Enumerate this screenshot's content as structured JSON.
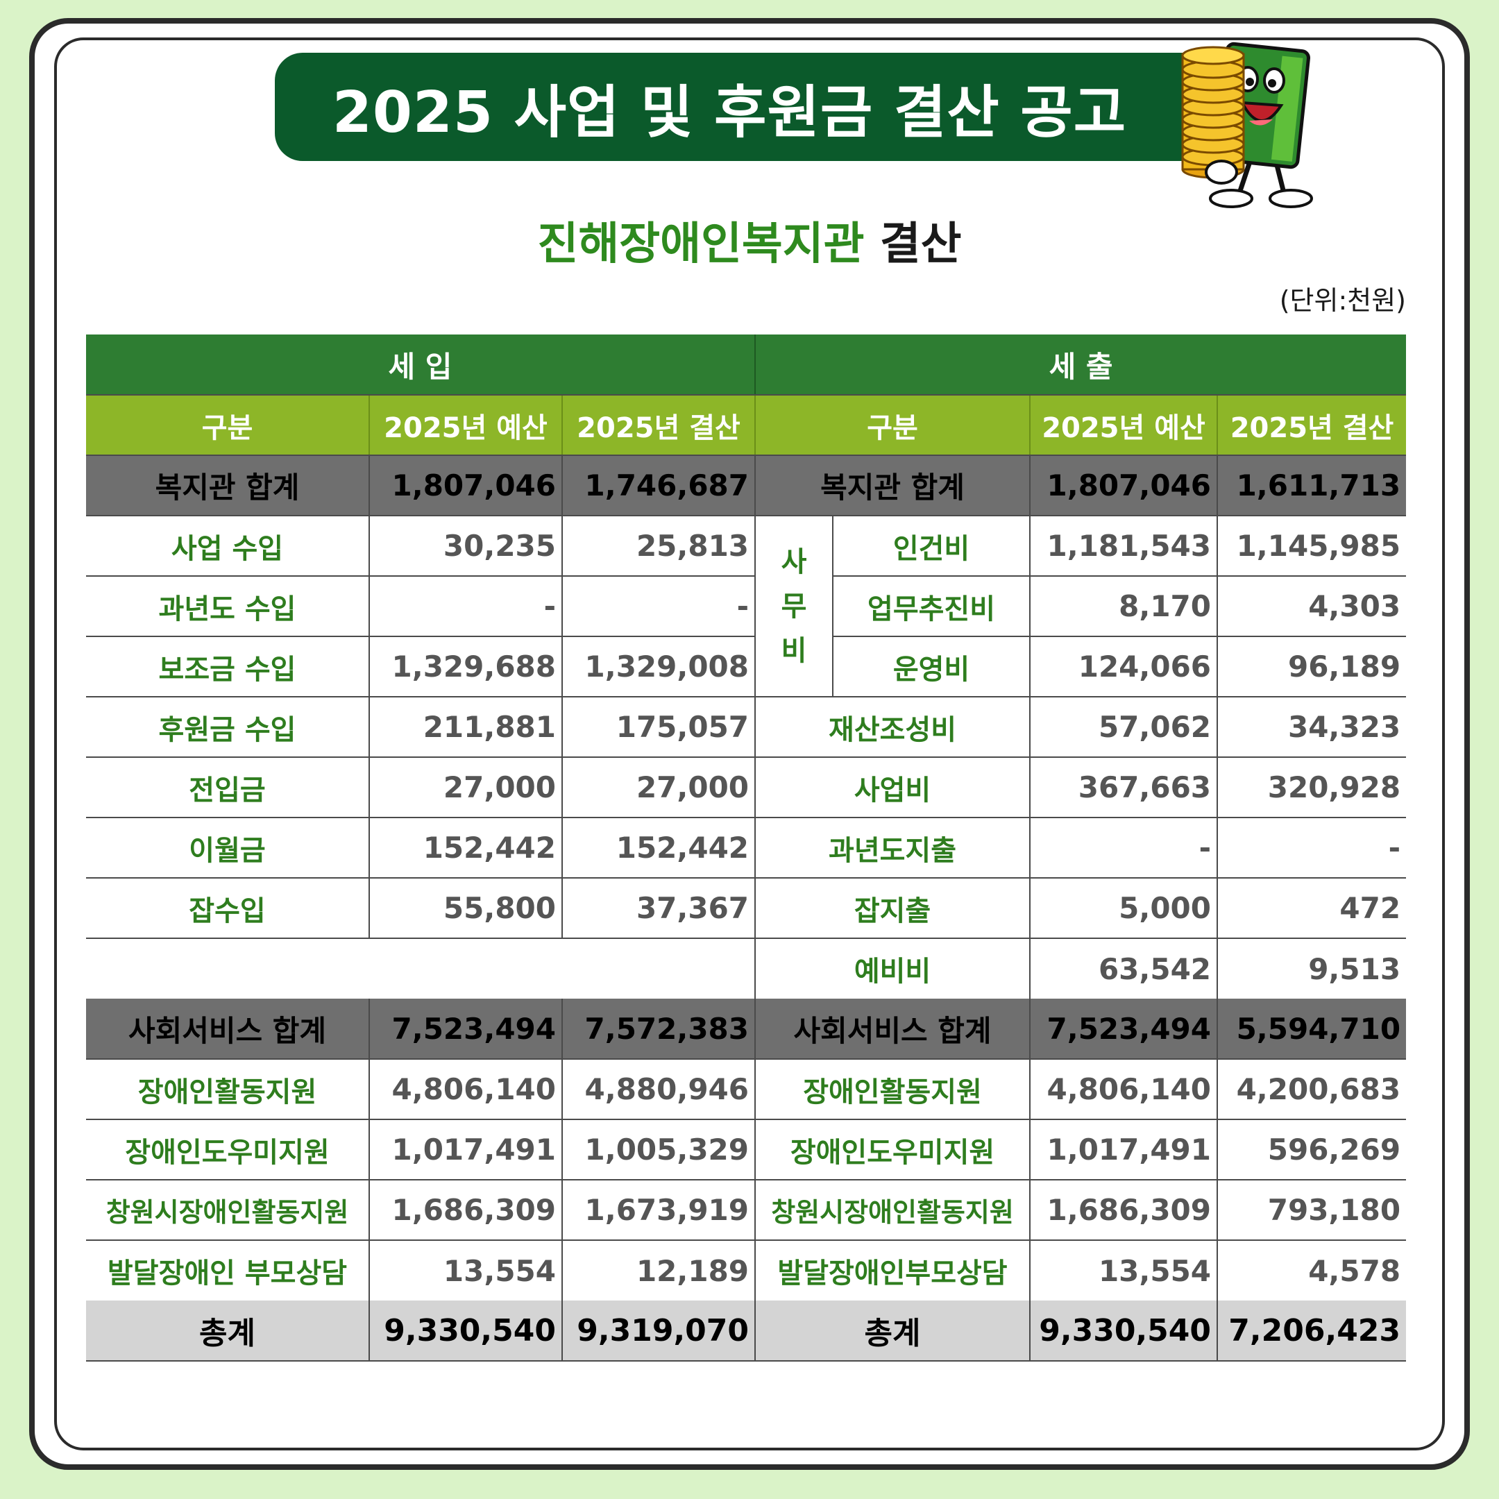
{
  "banner": {
    "title": "2025 사업 및 후원금 결산 공고"
  },
  "subtitle": {
    "org": "진해장애인복지관",
    "keyword": "결산"
  },
  "unit": "(단위:천원)",
  "table": {
    "income_header": "세 입",
    "expense_header": "세 출",
    "col_category": "구분",
    "col_budget": "2025년 예산",
    "col_settlement": "2025년 결산",
    "office_group": [
      "사",
      "무",
      "비"
    ],
    "welfare_sum": {
      "income": {
        "label": "복지관 합계",
        "budget": "1,807,046",
        "settlement": "1,746,687"
      },
      "expense": {
        "label": "복지관 합계",
        "budget": "1,807,046",
        "settlement": "1,611,713"
      }
    },
    "welfare_rows": [
      {
        "in_label": "사업 수입",
        "in_budget": "30,235",
        "in_settlement": "25,813",
        "ex_label": "인건비",
        "ex_budget": "1,181,543",
        "ex_settlement": "1,145,985"
      },
      {
        "in_label": "과년도 수입",
        "in_budget": "-",
        "in_settlement": "-",
        "ex_label": "업무추진비",
        "ex_budget": "8,170",
        "ex_settlement": "4,303"
      },
      {
        "in_label": "보조금 수입",
        "in_budget": "1,329,688",
        "in_settlement": "1,329,008",
        "ex_label": "운영비",
        "ex_budget": "124,066",
        "ex_settlement": "96,189"
      },
      {
        "in_label": "후원금 수입",
        "in_budget": "211,881",
        "in_settlement": "175,057",
        "ex_label": "재산조성비",
        "ex_budget": "57,062",
        "ex_settlement": "34,323"
      },
      {
        "in_label": "전입금",
        "in_budget": "27,000",
        "in_settlement": "27,000",
        "ex_label": "사업비",
        "ex_budget": "367,663",
        "ex_settlement": "320,928"
      },
      {
        "in_label": "이월금",
        "in_budget": "152,442",
        "in_settlement": "152,442",
        "ex_label": "과년도지출",
        "ex_budget": "-",
        "ex_settlement": "-"
      },
      {
        "in_label": "잡수입",
        "in_budget": "55,800",
        "in_settlement": "37,367",
        "ex_label": "잡지출",
        "ex_budget": "5,000",
        "ex_settlement": "472"
      }
    ],
    "reserve_row": {
      "ex_label": "예비비",
      "ex_budget": "63,542",
      "ex_settlement": "9,513"
    },
    "social_sum": {
      "income": {
        "label": "사회서비스 합계",
        "budget": "7,523,494",
        "settlement": "7,572,383"
      },
      "expense": {
        "label": "사회서비스 합계",
        "budget": "7,523,494",
        "settlement": "5,594,710"
      }
    },
    "social_rows": [
      {
        "in_label": "장애인활동지원",
        "in_budget": "4,806,140",
        "in_settlement": "4,880,946",
        "ex_label": "장애인활동지원",
        "ex_budget": "4,806,140",
        "ex_settlement": "4,200,683"
      },
      {
        "in_label": "장애인도우미지원",
        "in_budget": "1,017,491",
        "in_settlement": "1,005,329",
        "ex_label": "장애인도우미지원",
        "ex_budget": "1,017,491",
        "ex_settlement": "596,269"
      },
      {
        "in_label": "창원시장애인활동지원",
        "in_budget": "1,686,309",
        "in_settlement": "1,673,919",
        "ex_label": "창원시장애인활동지원",
        "ex_budget": "1,686,309",
        "ex_settlement": "793,180"
      },
      {
        "in_label": "발달장애인 부모상담",
        "in_budget": "13,554",
        "in_settlement": "12,189",
        "ex_label": "발달장애인부모상담",
        "ex_budget": "13,554",
        "ex_settlement": "4,578"
      }
    ],
    "grand_total": {
      "income": {
        "label": "총계",
        "budget": "9,330,540",
        "settlement": "9,319,070"
      },
      "expense": {
        "label": "총계",
        "budget": "9,330,540",
        "settlement": "7,206,423"
      }
    }
  },
  "colors": {
    "background": "#daf3c8",
    "banner": "#0b5a2b",
    "section_header": "#2e7d32",
    "column_header": "#8db628",
    "subtotal_row": "#6f6f6f",
    "total_row": "#d4d4d4",
    "label_text": "#2e7d1e"
  },
  "icons": {
    "mascot": "coin-stack-mascot-icon"
  }
}
